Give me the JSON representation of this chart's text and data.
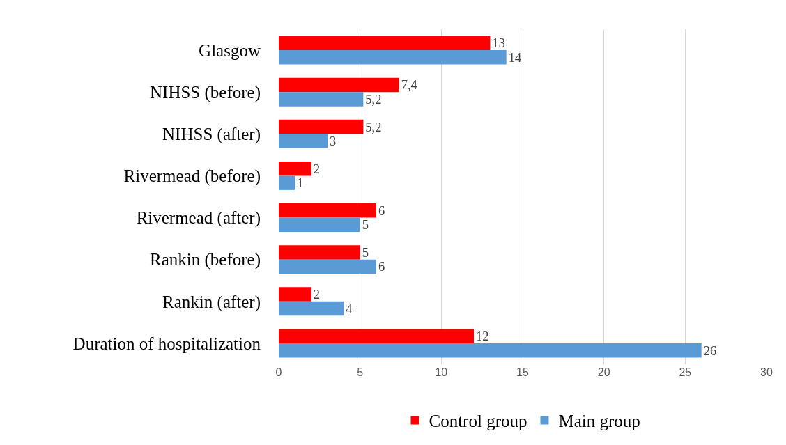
{
  "chart_data": {
    "type": "bar",
    "orientation": "horizontal",
    "categories": [
      "Glasgow",
      "NIHSS (before)",
      "NIHSS (after)",
      "Rivermead (before)",
      "Rivermead (after)",
      "Rankin (before)",
      "Rankin (after)",
      "Duration of hospitalization"
    ],
    "series": [
      {
        "name": "Control group",
        "color": "#ff0000",
        "values": [
          13,
          7.4,
          5.2,
          2,
          6,
          5,
          2,
          12
        ],
        "value_labels": [
          "13",
          "7,4",
          "5,2",
          "2",
          "6",
          "5",
          "2",
          "12"
        ]
      },
      {
        "name": "Main group",
        "color": "#5b9bd5",
        "values": [
          14,
          5.2,
          3,
          1,
          5,
          6,
          4,
          26
        ],
        "value_labels": [
          "14",
          "5,2",
          "3",
          "1",
          "5",
          "6",
          "4",
          "26"
        ]
      }
    ],
    "xlim": [
      0,
      30
    ],
    "xticks": [
      0,
      5,
      10,
      15,
      20,
      25,
      30
    ],
    "grid": "x",
    "legend": "bottom"
  }
}
